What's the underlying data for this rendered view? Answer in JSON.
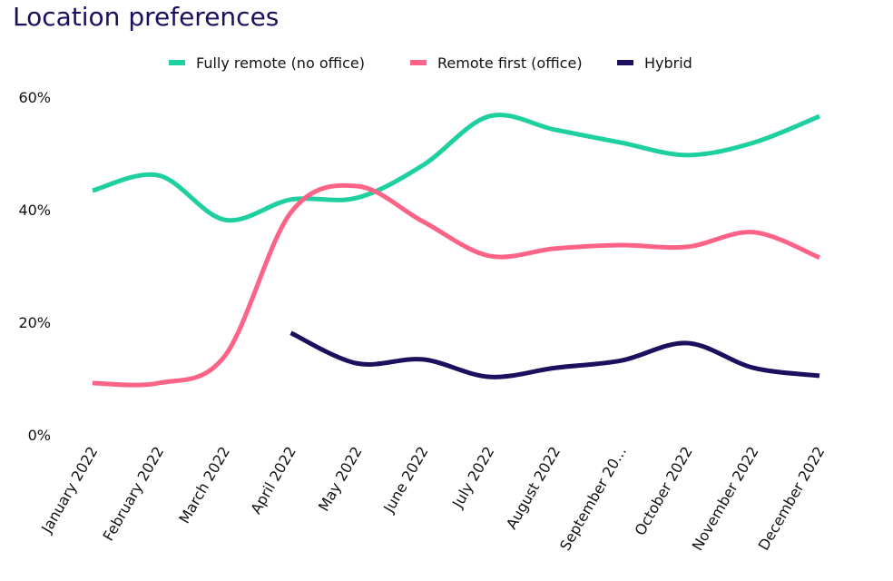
{
  "chart_data": {
    "type": "line",
    "title": "Location preferences",
    "xlabel": "",
    "ylabel": "",
    "ylim": [
      0,
      60
    ],
    "yticks": [
      "0%",
      "20%",
      "40%",
      "60%"
    ],
    "ytick_values": [
      0,
      20,
      40,
      60
    ],
    "grid": false,
    "legend_position": "top-center",
    "categories": [
      "January 2022",
      "February 2022",
      "March 2022",
      "April 2022",
      "May 2022",
      "June 2022",
      "July 2022",
      "August 2022",
      "September 20...",
      "October 2022",
      "November 2022",
      "December 2022"
    ],
    "series": [
      {
        "name": "Fully remote (no office)",
        "color": "#1ecfa0",
        "values": [
          43.4,
          46.1,
          38.2,
          41.8,
          42.1,
          47.9,
          56.6,
          54.2,
          51.9,
          49.7,
          51.9,
          56.6
        ]
      },
      {
        "name": "Remote first (office)",
        "color": "#fc6386",
        "values": [
          9.2,
          9.2,
          14.0,
          39.5,
          44.2,
          37.9,
          31.8,
          33.1,
          33.7,
          33.4,
          36.0,
          31.5
        ]
      },
      {
        "name": "Hybrid",
        "color": "#1b0f5e",
        "values": [
          null,
          null,
          null,
          18.1,
          12.7,
          13.4,
          10.3,
          11.9,
          13.2,
          16.3,
          11.9,
          10.5
        ]
      }
    ]
  }
}
